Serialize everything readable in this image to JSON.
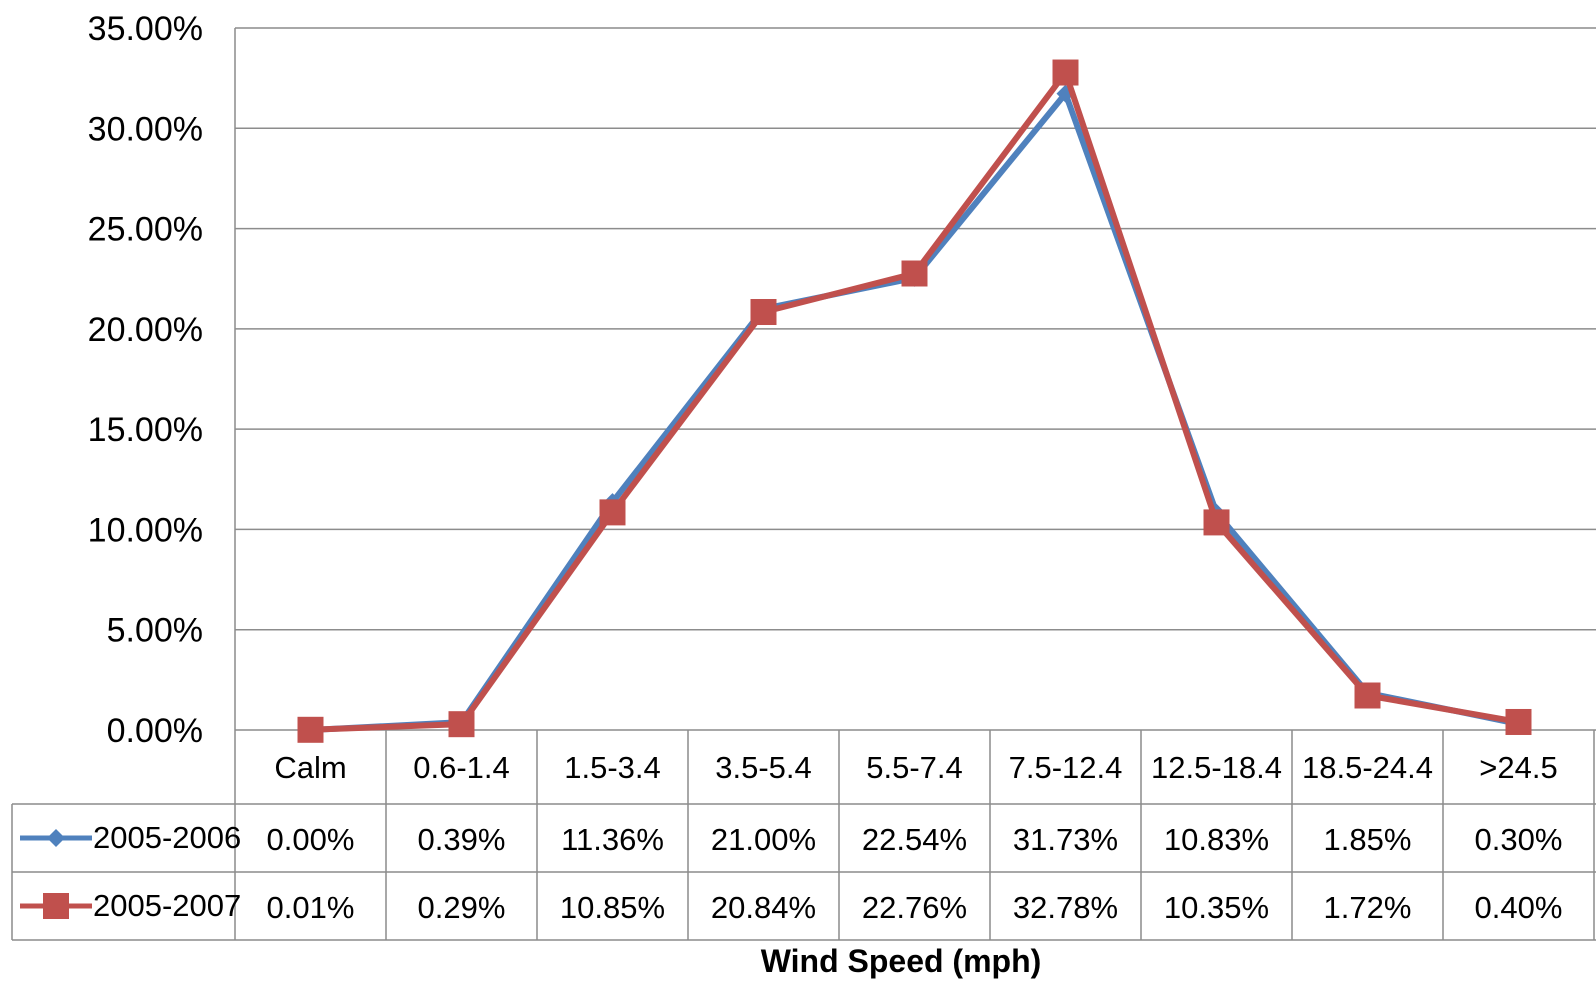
{
  "chart_data": {
    "type": "line",
    "xlabel": "Wind Speed (mph)",
    "ylabel": "",
    "ylim": [
      0,
      35
    ],
    "yticks": [
      "0.00%",
      "5.00%",
      "10.00%",
      "15.00%",
      "20.00%",
      "25.00%",
      "30.00%",
      "35.00%"
    ],
    "grid": true,
    "legend_placement": "data table rows below plot",
    "categories": [
      "Calm",
      "0.6-1.4",
      "1.5-3.4",
      "3.5-5.4",
      "5.5-7.4",
      "7.5-12.4",
      "12.5-18.4",
      "18.5-24.4",
      ">24.5"
    ],
    "series": [
      {
        "name": "2005-2006",
        "marker": "diamond",
        "color": "#4F81BD",
        "values": [
          0.0,
          0.39,
          11.36,
          21.0,
          22.54,
          31.73,
          10.83,
          1.85,
          0.3
        ],
        "labels": [
          "0.00%",
          "0.39%",
          "11.36%",
          "21.00%",
          "22.54%",
          "31.73%",
          "10.83%",
          "1.85%",
          "0.30%"
        ]
      },
      {
        "name": "2005-2007",
        "marker": "square",
        "color": "#C0504D",
        "values": [
          0.01,
          0.29,
          10.85,
          20.84,
          22.76,
          32.78,
          10.35,
          1.72,
          0.4
        ],
        "labels": [
          "0.01%",
          "0.29%",
          "10.85%",
          "20.84%",
          "22.76%",
          "32.78%",
          "10.35%",
          "1.72%",
          "0.40%"
        ]
      }
    ]
  }
}
